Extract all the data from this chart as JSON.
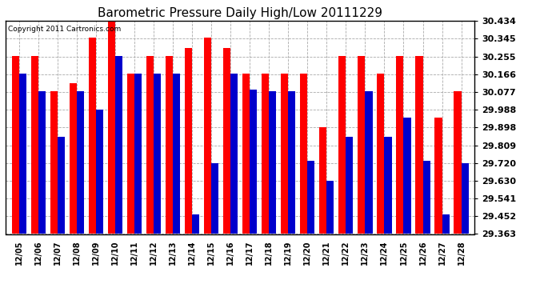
{
  "title": "Barometric Pressure Daily High/Low 20111229",
  "copyright_text": "Copyright 2011 Cartronics.com",
  "dates": [
    "12/05",
    "12/06",
    "12/07",
    "12/08",
    "12/09",
    "12/10",
    "12/11",
    "12/12",
    "12/13",
    "12/14",
    "12/15",
    "12/16",
    "12/17",
    "12/18",
    "12/19",
    "12/20",
    "12/21",
    "12/22",
    "12/23",
    "12/24",
    "12/25",
    "12/26",
    "12/27",
    "12/28"
  ],
  "highs": [
    30.26,
    30.26,
    30.08,
    30.12,
    30.35,
    30.43,
    30.17,
    30.26,
    30.26,
    30.3,
    30.35,
    30.3,
    30.17,
    30.17,
    30.17,
    30.17,
    29.9,
    30.26,
    30.26,
    30.17,
    30.26,
    30.26,
    29.95,
    30.08
  ],
  "lows": [
    30.17,
    30.08,
    29.85,
    30.08,
    29.99,
    30.26,
    30.17,
    30.17,
    30.17,
    29.46,
    29.72,
    30.17,
    30.09,
    30.08,
    30.08,
    29.73,
    29.63,
    29.85,
    30.08,
    29.85,
    29.95,
    29.73,
    29.46,
    29.72
  ],
  "y_ticks": [
    29.363,
    29.452,
    29.541,
    29.63,
    29.72,
    29.809,
    29.898,
    29.988,
    30.077,
    30.166,
    30.255,
    30.345,
    30.434
  ],
  "y_min": 29.363,
  "y_max": 30.434,
  "high_color": "#ff0000",
  "low_color": "#0000cc",
  "bg_color": "#ffffff",
  "grid_color": "#aaaaaa",
  "title_fontsize": 11,
  "bar_width": 0.38
}
